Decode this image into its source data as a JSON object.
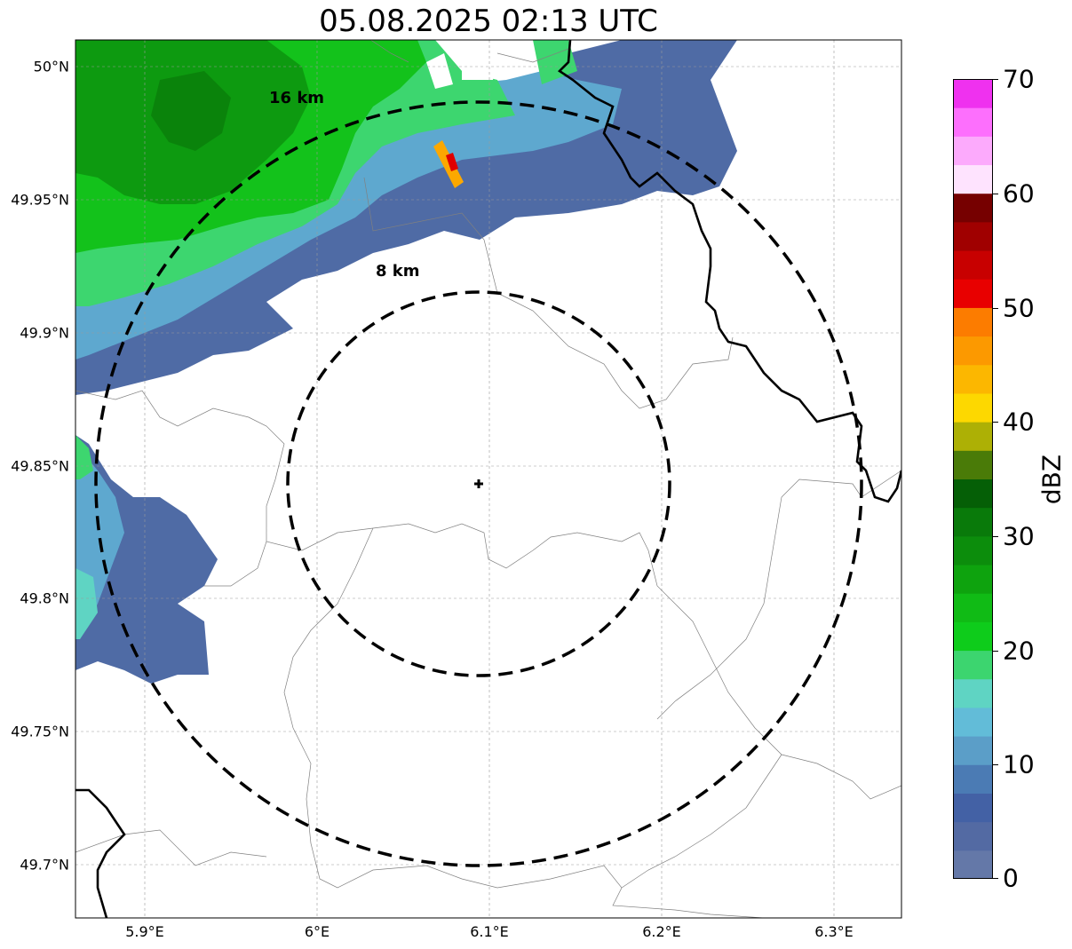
{
  "title": "05.08.2025 02:13 UTC",
  "map": {
    "lon_ticks": [
      "5.9°E",
      "6°E",
      "6.1°E",
      "6.2°E",
      "6.3°E"
    ],
    "lat_ticks": [
      "50°N",
      "49.95°N",
      "49.9°N",
      "49.85°N",
      "49.8°N",
      "49.75°N",
      "49.7°N"
    ],
    "rings": [
      {
        "label": "16 km",
        "radius_km": 16
      },
      {
        "label": "8 km",
        "radius_km": 8
      }
    ],
    "center_marker": "radar-site-cross"
  },
  "colorbar": {
    "label": "dBZ",
    "ticks": [
      "70",
      "60",
      "50",
      "40",
      "30",
      "20",
      "10",
      "0"
    ],
    "min": 0,
    "max": 70,
    "colors": [
      "#6478a8",
      "#536aa3",
      "#4361a5",
      "#4b7bb4",
      "#5b9ec8",
      "#62bcd8",
      "#5fd4c3",
      "#3cd56f",
      "#0ecc1b",
      "#10bb15",
      "#0ea30e",
      "#0c8d0c",
      "#097a0a",
      "#055f06",
      "#4a7b08",
      "#adb005",
      "#fdd800",
      "#fcb700",
      "#fc9900",
      "#fc7c00",
      "#e80000",
      "#c80000",
      "#a00000",
      "#760000",
      "#fee3fe",
      "#fcaafc",
      "#fd6ffd",
      "#ef31ef"
    ]
  }
}
